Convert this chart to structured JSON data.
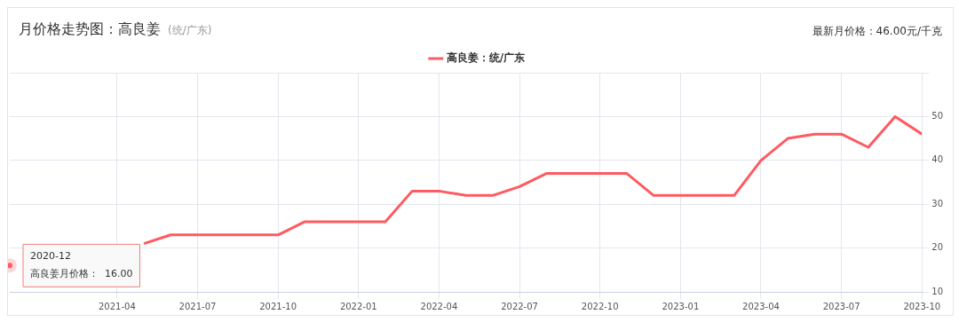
{
  "chart_data": {
    "type": "line",
    "title": "月价格走势图：高良姜",
    "subtitle": "(统/广东)",
    "x": [
      "2020-12",
      "2021-01",
      "2021-02",
      "2021-03",
      "2021-04",
      "2021-05",
      "2021-06",
      "2021-07",
      "2021-08",
      "2021-09",
      "2021-10",
      "2021-11",
      "2021-12",
      "2022-01",
      "2022-02",
      "2022-03",
      "2022-04",
      "2022-05",
      "2022-06",
      "2022-07",
      "2022-08",
      "2022-09",
      "2022-10",
      "2022-11",
      "2022-12",
      "2023-01",
      "2023-02",
      "2023-03",
      "2023-04",
      "2023-05",
      "2023-06",
      "2023-07",
      "2023-08",
      "2023-09",
      "2023-10"
    ],
    "series": [
      {
        "name": "高良姜：统/广东",
        "color": "#ff5a5f",
        "values": [
          16,
          null,
          null,
          null,
          null,
          21,
          23,
          23,
          23,
          23,
          23,
          26,
          26,
          26,
          26,
          33,
          33,
          32,
          32,
          34,
          37,
          37,
          37,
          37,
          32,
          32,
          32,
          32,
          40,
          45,
          46,
          46,
          43,
          50,
          46
        ]
      }
    ],
    "xlim": [
      "2020-12",
      "2023-10"
    ],
    "xticks": [
      "2021-04",
      "2021-07",
      "2021-10",
      "2022-01",
      "2022-04",
      "2022-07",
      "2022-10",
      "2023-01",
      "2023-04",
      "2023-07",
      "2023-10"
    ],
    "ylim": [
      10,
      60
    ],
    "yticks": [
      10,
      20,
      30,
      40,
      50,
      {
        "value": 60,
        "label": null
      }
    ],
    "grid": true,
    "legend": "top",
    "marker": "none",
    "line_style": "solid",
    "annotations": [
      "最新月价格：46.00元/千克",
      {
        "text": "2020-12",
        "x": "2020-12",
        "y": 16
      },
      {
        "text": "高良姜月价格：  16.00",
        "x": "2020-12",
        "y": 16
      }
    ]
  }
}
